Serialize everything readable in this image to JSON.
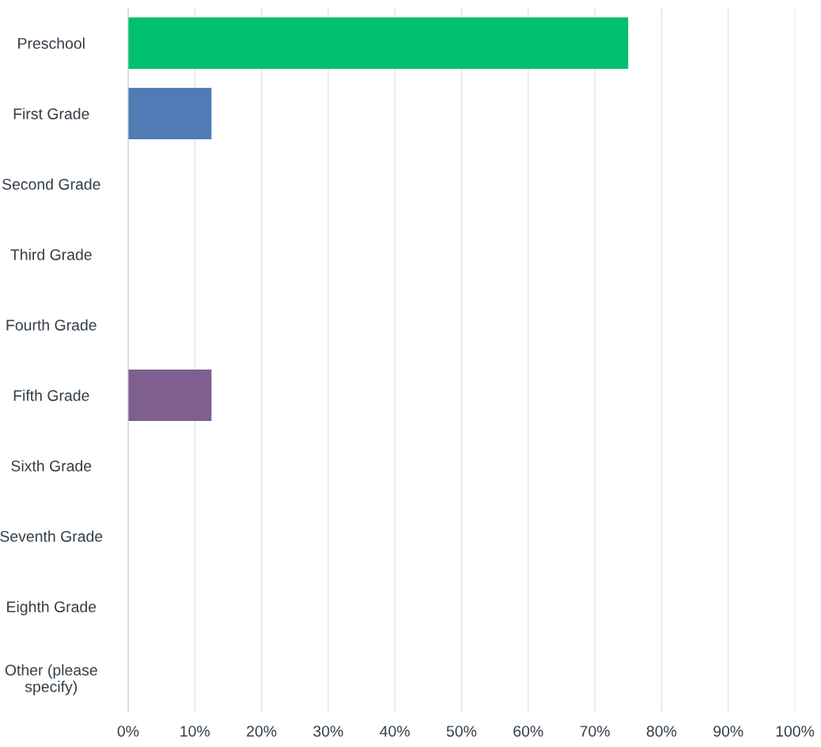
{
  "chart_data": {
    "type": "bar",
    "orientation": "horizontal",
    "categories": [
      "Preschool",
      "First Grade",
      "Second Grade",
      "Third Grade",
      "Fourth Grade",
      "Fifth Grade",
      "Sixth Grade",
      "Seventh Grade",
      "Eighth Grade",
      "Other (please\nspecify)"
    ],
    "values": [
      75,
      12.5,
      0,
      0,
      0,
      12.5,
      0,
      0,
      0,
      0
    ],
    "colors": [
      "#00bf6f",
      "#507cb6",
      "#f9be00",
      "#6bc8cd",
      "#ff8b4f",
      "#7f5f90",
      "#e05850",
      "#0a7ea3",
      "#c4c4c4",
      "#00bf6f"
    ],
    "xlim": [
      0,
      100
    ],
    "xticks": [
      {
        "value": 0,
        "label": "0%"
      },
      {
        "value": 10,
        "label": "10%"
      },
      {
        "value": 20,
        "label": "20%"
      },
      {
        "value": 30,
        "label": "30%"
      },
      {
        "value": 40,
        "label": "40%"
      },
      {
        "value": 50,
        "label": "50%"
      },
      {
        "value": 60,
        "label": "60%"
      },
      {
        "value": 70,
        "label": "70%"
      },
      {
        "value": 80,
        "label": "80%"
      },
      {
        "value": 90,
        "label": "90%"
      },
      {
        "value": 100,
        "label": "100%"
      }
    ],
    "grid": "x",
    "legend": false
  }
}
